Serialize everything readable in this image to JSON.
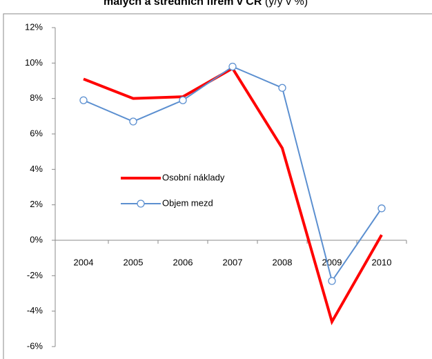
{
  "chart_data": {
    "type": "line",
    "title": "malých a středních firem v ČR",
    "subtitle": "(y/y v %)",
    "categories": [
      "2004",
      "2005",
      "2006",
      "2007",
      "2008",
      "2009",
      "2010"
    ],
    "series": [
      {
        "name": "Osobní náklady",
        "color": "#ff0000",
        "values": [
          9.1,
          8.0,
          8.1,
          9.7,
          5.2,
          -4.6,
          0.3
        ]
      },
      {
        "name": "Objem mezd",
        "color": "#5b8fd0",
        "values": [
          7.9,
          6.7,
          7.9,
          9.8,
          8.6,
          -2.3,
          1.8
        ]
      }
    ],
    "ylim": [
      -6,
      12
    ],
    "yticks": [
      {
        "value": -6,
        "label": "-6%"
      },
      {
        "value": -4,
        "label": "-4%"
      },
      {
        "value": -2,
        "label": "-2%"
      },
      {
        "value": 0,
        "label": "0%"
      },
      {
        "value": 2,
        "label": "2%"
      },
      {
        "value": 4,
        "label": "4%"
      },
      {
        "value": 6,
        "label": "6%"
      },
      {
        "value": 8,
        "label": "8%"
      },
      {
        "value": 10,
        "label": "10%"
      },
      {
        "value": 12,
        "label": "12%"
      }
    ]
  }
}
